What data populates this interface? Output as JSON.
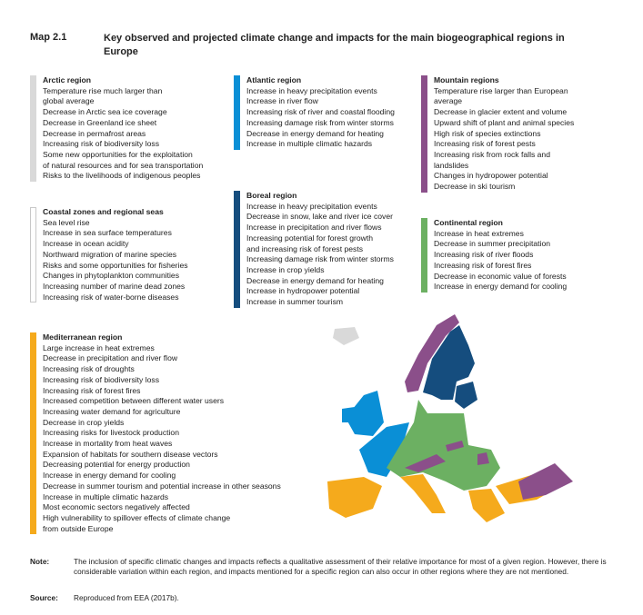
{
  "header": {
    "map_label": "Map 2.1",
    "title": "Key observed and projected climate change and impacts for the main biogeographical regions in Europe"
  },
  "colors": {
    "arctic": "#d9d9d9",
    "atlantic": "#0a8fd6",
    "mountain": "#8b4f8a",
    "coastal": "#ffffff",
    "boreal": "#154d7e",
    "continental": "#6cb062",
    "mediterranean": "#f5aa1c"
  },
  "regions": {
    "arctic": {
      "title": "Arctic region",
      "items": [
        "Temperature rise much larger than\nglobal average",
        "Decrease in Arctic sea ice coverage",
        "Decrease in Greenland ice sheet",
        "Decrease in permafrost areas",
        "Increasing risk of biodiversity loss",
        "Some new opportunities for the exploitation\nof natural resources and for sea transportation",
        "Risks to the livelihoods of indigenous peoples"
      ]
    },
    "atlantic": {
      "title": "Atlantic region",
      "items": [
        "Increase in heavy precipitation events",
        "Increase in river flow",
        "Increasing risk of river and coastal flooding",
        "Increasing damage risk from winter storms",
        "Decrease in energy demand for heating",
        "Increase in multiple climatic hazards"
      ]
    },
    "mountain": {
      "title": "Mountain regions",
      "items": [
        "Temperature rise larger than European\naverage",
        "Decrease in glacier extent and volume",
        "Upward shift of plant and animal species",
        "High risk of species extinctions",
        "Increasing risk of forest pests",
        "Increasing risk from rock falls and\nlandslides",
        "Changes in hydropower potential",
        "Decrease in ski tourism"
      ]
    },
    "coastal": {
      "title": "Coastal zones and regional seas",
      "items": [
        "Sea level rise",
        "Increase in sea surface temperatures",
        "Increase in ocean acidity",
        "Northward migration of marine species",
        "Risks and some opportunities for fisheries",
        "Changes in phytoplankton communities",
        "Increasing number of marine dead zones",
        "Increasing risk of water-borne diseases"
      ]
    },
    "boreal": {
      "title": "Boreal region",
      "items": [
        "Increase in heavy precipitation events",
        "Decrease in snow, lake and river ice cover",
        "Increase in precipitation and river flows",
        "Increasing potential for forest growth\nand increasing risk of forest pests",
        "Increasing damage risk from winter storms",
        "Increase in crop yields",
        "Decrease in energy demand for heating",
        "Increase in hydropower potential",
        "Increase in summer tourism"
      ]
    },
    "continental": {
      "title": "Continental region",
      "items": [
        "Increase in heat extremes",
        "Decrease in summer precipitation",
        "Increasing risk of river floods",
        "Increasing risk of forest fires",
        "Decrease in economic value of forests",
        "Increase in energy demand for cooling"
      ]
    },
    "mediterranean": {
      "title": "Mediterranean region",
      "items": [
        "Large increase in heat extremes",
        "Decrease in precipitation and river flow",
        "Increasing risk of droughts",
        "Increasing risk of biodiversity loss",
        "Increasing risk of forest fires",
        "Increased competition between different water users",
        "Increasing water demand for agriculture",
        "Decrease in crop yields",
        "Increasing risks for livestock production",
        "Increase in mortality from heat waves",
        "Expansion of habitats for southern disease vectors",
        "Decreasing potential for energy production",
        "Increase in energy demand for cooling",
        "Decrease in summer tourism and potential increase in other seasons",
        "Increase in multiple climatic hazards",
        "Most economic sectors negatively affected",
        "High vulnerability to spillover effects of climate change\nfrom outside Europe"
      ]
    }
  },
  "footer": {
    "note_label": "Note:",
    "note_text": "The inclusion of specific climatic changes and impacts reflects a qualitative assessment of their relative importance for most of a given region. However, there is considerable variation within each region, and impacts mentioned for a specific region can also occur in other regions where they are not mentioned.",
    "source_label": "Source:",
    "source_text": "Reproduced from EEA (2017b)."
  }
}
